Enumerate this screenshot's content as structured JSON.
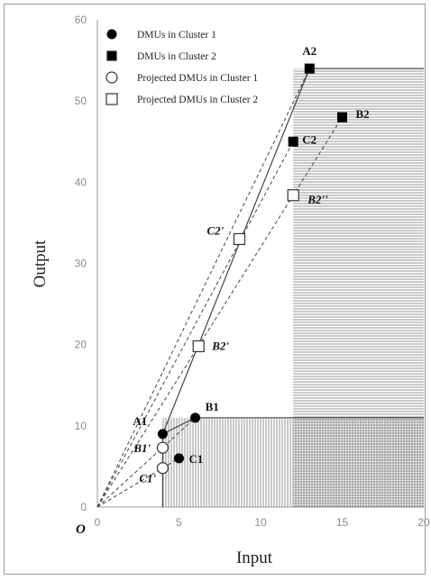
{
  "chart_data": {
    "type": "scatter",
    "xlabel": "Input",
    "ylabel": "Output",
    "xlim": [
      0,
      20
    ],
    "ylim": [
      0,
      60
    ],
    "x_ticks": [
      "0",
      "5",
      "10",
      "15",
      "20"
    ],
    "y_ticks": [
      "0",
      "10",
      "20",
      "30",
      "40",
      "50",
      "60"
    ],
    "origin_label": "O",
    "legend_position": "top-left",
    "legend": [
      {
        "marker": "filled-circle",
        "label": "DMUs in Cluster 1"
      },
      {
        "marker": "filled-square",
        "label": "DMUs in Cluster 2"
      },
      {
        "marker": "open-circle",
        "label": "Projected DMUs in Cluster 1"
      },
      {
        "marker": "open-square",
        "label": "Projected DMUs in Cluster 2"
      }
    ],
    "series": [
      {
        "name": "DMUs in Cluster 1",
        "marker": "filled-circle",
        "points": [
          {
            "label": "A1",
            "x": 4,
            "y": 9
          },
          {
            "label": "B1",
            "x": 6,
            "y": 11
          },
          {
            "label": "C1",
            "x": 5,
            "y": 6
          }
        ]
      },
      {
        "name": "DMUs in Cluster 2",
        "marker": "filled-square",
        "points": [
          {
            "label": "A2",
            "x": 13,
            "y": 54
          },
          {
            "label": "B2",
            "x": 15,
            "y": 48
          },
          {
            "label": "C2",
            "x": 12,
            "y": 45
          }
        ]
      },
      {
        "name": "Projected DMUs in Cluster 1",
        "marker": "open-circle",
        "points": [
          {
            "label": "B1'",
            "x": 4,
            "y": 7.3
          },
          {
            "label": "C1'",
            "x": 4,
            "y": 4.8
          }
        ]
      },
      {
        "name": "Projected DMUs in Cluster 2",
        "marker": "open-square",
        "points": [
          {
            "label": "C2'",
            "x": 8.7,
            "y": 33
          },
          {
            "label": "B2'",
            "x": 6.2,
            "y": 19.8
          },
          {
            "label": "B2''",
            "x": 12,
            "y": 38.4
          }
        ]
      }
    ],
    "frontier_lines": [
      {
        "style": "solid",
        "points": [
          [
            4,
            0
          ],
          [
            4,
            9
          ],
          [
            6,
            11
          ],
          [
            20,
            11
          ]
        ]
      },
      {
        "style": "solid",
        "points": [
          [
            4,
            9
          ],
          [
            13,
            54
          ],
          [
            20,
            54
          ]
        ]
      },
      {
        "style": "dashed",
        "points": [
          [
            0,
            0
          ],
          [
            6,
            11
          ]
        ]
      },
      {
        "style": "dashed",
        "points": [
          [
            0,
            0
          ],
          [
            5,
            6
          ]
        ]
      },
      {
        "style": "dashed",
        "points": [
          [
            0,
            0
          ],
          [
            13,
            54
          ]
        ]
      },
      {
        "style": "dashed",
        "points": [
          [
            0,
            0
          ],
          [
            15,
            48
          ]
        ]
      },
      {
        "style": "dashed",
        "points": [
          [
            0,
            0
          ],
          [
            12,
            45
          ]
        ]
      }
    ],
    "shaded_regions": [
      {
        "hatch": "vertical",
        "x": [
          4,
          12
        ],
        "y": [
          0,
          11
        ]
      },
      {
        "hatch": "horizontal",
        "x": [
          12,
          20
        ],
        "y": [
          0,
          54
        ]
      },
      {
        "hatch": "vertical",
        "x": [
          12,
          20
        ],
        "y": [
          0,
          11
        ]
      }
    ]
  }
}
